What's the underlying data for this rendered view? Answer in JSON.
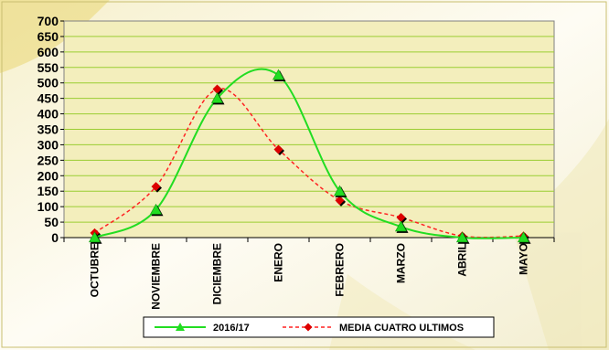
{
  "chart_data": {
    "type": "line",
    "categories": [
      "OCTUBRE",
      "NOVIEMBRE",
      "DICIEMBRE",
      "ENERO",
      "FEBRERO",
      "MARZO",
      "ABRIL",
      "MAYO"
    ],
    "series": [
      {
        "name": "2016/17",
        "values": [
          0,
          90,
          450,
          525,
          150,
          35,
          0,
          0
        ],
        "color": "#22dd22",
        "marker": "triangle",
        "marker_color": "#000000",
        "line_style": "solid"
      },
      {
        "name": "MEDIA CUATRO ULTIMOS",
        "values": [
          15,
          165,
          480,
          285,
          120,
          65,
          5,
          5
        ],
        "color": "#ff2222",
        "marker": "diamond",
        "marker_color": "#dd0000",
        "line_style": "dashed"
      }
    ],
    "ylim": [
      0,
      700
    ],
    "yticks": [
      0,
      50,
      100,
      150,
      200,
      250,
      300,
      350,
      400,
      450,
      500,
      550,
      600,
      650,
      700
    ],
    "grid": "horizontal",
    "legend_position": "bottom",
    "plot_background": "#f3eebc",
    "grid_color": "#9acd32"
  }
}
